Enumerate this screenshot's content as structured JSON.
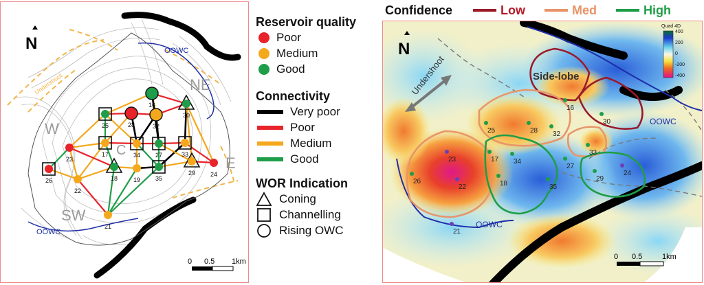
{
  "left_map": {
    "north_label": "N",
    "region_labels": {
      "w": "W",
      "ne": "NE",
      "sw": "SW",
      "e": "E",
      "c": "C"
    },
    "oowc_top": "OOWC",
    "oowc_bottom": "OOWC",
    "undershoot": "Undershoot",
    "scale": {
      "zero": "0",
      "mid": "0.5",
      "end": "1km"
    },
    "wells": [
      {
        "id": "16",
        "quality": "good",
        "wor": "rising"
      },
      {
        "id": "28",
        "quality": "poor",
        "wor": "rising"
      },
      {
        "id": "32",
        "quality": "medium",
        "wor": "rising"
      },
      {
        "id": "30",
        "quality": "good",
        "wor": "coning"
      },
      {
        "id": "25",
        "quality": "good",
        "wor": "channelling"
      },
      {
        "id": "23",
        "quality": "poor",
        "wor": "none"
      },
      {
        "id": "17",
        "quality": "medium",
        "wor": "channelling"
      },
      {
        "id": "34",
        "quality": "medium",
        "wor": "channelling"
      },
      {
        "id": "27",
        "quality": "good",
        "wor": "channelling"
      },
      {
        "id": "33",
        "quality": "medium",
        "wor": "channelling"
      },
      {
        "id": "26",
        "quality": "poor",
        "wor": "channelling"
      },
      {
        "id": "22",
        "quality": "medium",
        "wor": "none"
      },
      {
        "id": "18",
        "quality": "good",
        "wor": "coning"
      },
      {
        "id": "19",
        "quality": "medium",
        "wor": "none"
      },
      {
        "id": "35",
        "quality": "good",
        "wor": "channelling"
      },
      {
        "id": "29",
        "quality": "medium",
        "wor": "coning"
      },
      {
        "id": "24",
        "quality": "poor",
        "wor": "none"
      },
      {
        "id": "21",
        "quality": "medium",
        "wor": "none"
      }
    ]
  },
  "legend": {
    "quality_title": "Reservoir quality",
    "quality": [
      {
        "label": "Poor",
        "color": "#e8232a"
      },
      {
        "label": "Medium",
        "color": "#f4a81d"
      },
      {
        "label": "Good",
        "color": "#1e9e48"
      }
    ],
    "connectivity_title": "Connectivity",
    "connectivity": [
      {
        "label": "Very poor",
        "color": "#000000"
      },
      {
        "label": "Poor",
        "color": "#e8232a"
      },
      {
        "label": "Medium",
        "color": "#f4a81d"
      },
      {
        "label": "Good",
        "color": "#1e9e48"
      }
    ],
    "wor_title": "WOR Indication",
    "wor": [
      {
        "label": "Coning",
        "shape": "triangle-icon"
      },
      {
        "label": "Channelling",
        "shape": "square-icon"
      },
      {
        "label": "Rising OWC",
        "shape": "circle-icon"
      }
    ]
  },
  "right_map": {
    "confidence_title": "Confidence",
    "confidence": [
      {
        "label": "Low",
        "color": "#9a1b2a"
      },
      {
        "label": "Med",
        "color": "#e8956a"
      },
      {
        "label": "High",
        "color": "#1e9e48"
      }
    ],
    "north_label": "N",
    "undershoot": "Undershoot",
    "side_lobe": "Side-lobe",
    "oowc_right": "OOWC",
    "oowc_bottom": "OOWC",
    "colorbar": {
      "title": "Quad 4D",
      "ticks": [
        "400",
        "200",
        "0",
        "-200",
        "-400"
      ]
    },
    "scale": {
      "zero": "0",
      "mid": "0.5",
      "end": "1km"
    },
    "wells": [
      "16",
      "30",
      "25",
      "28",
      "32",
      "33",
      "23",
      "17",
      "34",
      "27",
      "24",
      "29",
      "26",
      "22",
      "18",
      "35",
      "21"
    ]
  }
}
